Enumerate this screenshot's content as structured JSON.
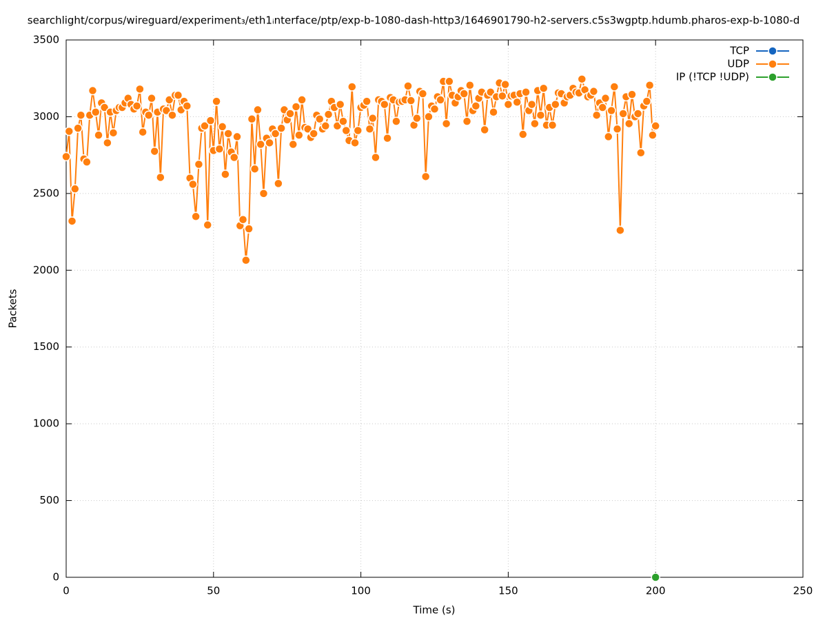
{
  "chart_data": {
    "type": "line",
    "title": "searchlight/corpus/wireguard/experiment₃/eth1ᵢnterface/ptp/exp-b-1080-dash-http3/1646901790-h2-servers.c5s3wgptp.hdumb.pharos-exp-b-1080-d",
    "xlabel": "Time (s)",
    "ylabel": "Packets",
    "xlim": [
      0,
      250
    ],
    "xticks": [
      0,
      50,
      100,
      150,
      200,
      250
    ],
    "ylim": [
      0,
      3500
    ],
    "yticks": [
      0,
      500,
      1000,
      1500,
      2000,
      2500,
      3000,
      3500
    ],
    "grid": true,
    "legend": "top-right",
    "series": [
      {
        "name": "TCP",
        "color": "#1565c0",
        "x": [],
        "values": []
      },
      {
        "name": "UDP",
        "color": "#ff7f0e",
        "x": [
          0,
          1,
          2,
          3,
          4,
          5,
          6,
          7,
          8,
          9,
          10,
          11,
          12,
          13,
          14,
          15,
          16,
          17,
          18,
          19,
          20,
          21,
          22,
          23,
          24,
          25,
          26,
          27,
          28,
          29,
          30,
          31,
          32,
          33,
          34,
          35,
          36,
          37,
          38,
          39,
          40,
          41,
          42,
          43,
          44,
          45,
          46,
          47,
          48,
          49,
          50,
          51,
          52,
          53,
          54,
          55,
          56,
          57,
          58,
          59,
          60,
          61,
          62,
          63,
          64,
          65,
          66,
          67,
          68,
          69,
          70,
          71,
          72,
          73,
          74,
          75,
          76,
          77,
          78,
          79,
          80,
          81,
          82,
          83,
          84,
          85,
          86,
          87,
          88,
          89,
          90,
          91,
          92,
          93,
          94,
          95,
          96,
          97,
          98,
          99,
          100,
          101,
          102,
          103,
          104,
          105,
          106,
          107,
          108,
          109,
          110,
          111,
          112,
          113,
          114,
          115,
          116,
          117,
          118,
          119,
          120,
          121,
          122,
          123,
          124,
          125,
          126,
          127,
          128,
          129,
          130,
          131,
          132,
          133,
          134,
          135,
          136,
          137,
          138,
          139,
          140,
          141,
          142,
          143,
          144,
          145,
          146,
          147,
          148,
          149,
          150,
          151,
          152,
          153,
          154,
          155,
          156,
          157,
          158,
          159,
          160,
          161,
          162,
          163,
          164,
          165,
          166,
          167,
          168,
          169,
          170,
          171,
          172,
          173,
          174,
          175,
          176,
          177,
          178,
          179,
          180,
          181,
          182,
          183,
          184,
          185,
          186,
          187,
          188,
          189,
          190,
          191,
          192,
          193,
          194,
          195,
          196,
          197,
          198,
          199,
          200
        ],
        "values": [
          2740,
          2905,
          2320,
          2530,
          2925,
          3010,
          2725,
          2705,
          3010,
          3170,
          3030,
          2880,
          3090,
          3060,
          2830,
          3030,
          2895,
          3040,
          3060,
          3060,
          3090,
          3120,
          3080,
          3050,
          3070,
          3180,
          2900,
          3030,
          3010,
          3120,
          2775,
          3030,
          2605,
          3050,
          3040,
          3110,
          3010,
          3140,
          3140,
          3045,
          3100,
          3070,
          2600,
          2560,
          2350,
          2690,
          2925,
          2940,
          2295,
          2975,
          2780,
          3100,
          2790,
          2935,
          2625,
          2890,
          2770,
          2735,
          2870,
          2290,
          2330,
          2065,
          2270,
          2985,
          2660,
          3045,
          2820,
          2500,
          2860,
          2830,
          2920,
          2890,
          2565,
          2925,
          3045,
          2980,
          3020,
          2820,
          3065,
          2880,
          3110,
          2930,
          2920,
          2865,
          2890,
          3010,
          2985,
          2920,
          2940,
          3015,
          3100,
          3060,
          2940,
          3080,
          2970,
          2910,
          2845,
          3195,
          2830,
          2910,
          3060,
          3075,
          3100,
          2920,
          2990,
          2735,
          3110,
          3100,
          3080,
          2860,
          3125,
          3110,
          2970,
          3095,
          3100,
          3110,
          3200,
          3105,
          2945,
          2990,
          3165,
          3150,
          2610,
          3000,
          3070,
          3050,
          3130,
          3110,
          3230,
          2955,
          3230,
          3140,
          3090,
          3130,
          3170,
          3150,
          2970,
          3205,
          3040,
          3070,
          3120,
          3160,
          2915,
          3140,
          3160,
          3030,
          3130,
          3220,
          3135,
          3210,
          3080,
          3135,
          3140,
          3095,
          3150,
          2885,
          3160,
          3040,
          3080,
          2955,
          3170,
          3010,
          3185,
          2945,
          3060,
          2945,
          3080,
          3155,
          3150,
          3090,
          3130,
          3140,
          3185,
          3160,
          3155,
          3245,
          3175,
          3130,
          3140,
          3165,
          3010,
          3090,
          3060,
          3120,
          2870,
          3040,
          3195,
          2920,
          2260,
          3020,
          3130,
          2955,
          3145,
          3000,
          3020,
          2765,
          3070,
          3100,
          3205,
          2880,
          2940
        ]
      },
      {
        "name": "IP (!TCP  !UDP)",
        "color": "#2ca02c",
        "x": [
          200
        ],
        "values": [
          0
        ]
      }
    ]
  }
}
